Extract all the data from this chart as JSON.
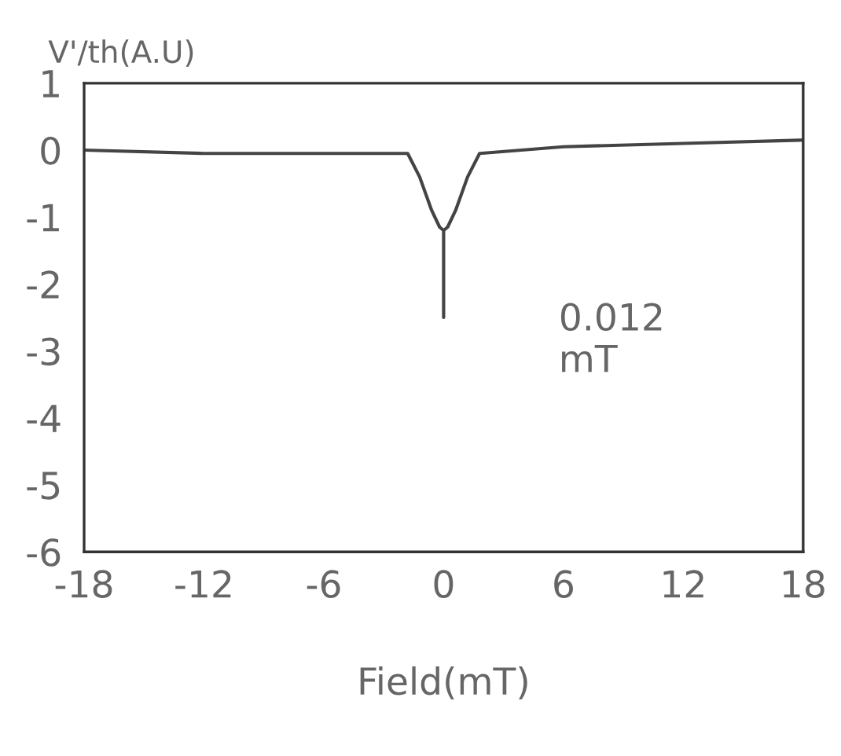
{
  "chart_data": {
    "type": "line",
    "xlabel": "Field(mT)",
    "ylabel": "V'/th(A.U)",
    "x": [
      -18,
      -12,
      -6,
      -1.8,
      -1.2,
      -0.6,
      -0.2,
      0,
      0,
      0,
      0.2,
      0.6,
      1.2,
      1.8,
      6,
      12,
      18
    ],
    "values": [
      0,
      -0.05,
      -0.05,
      -0.05,
      -0.4,
      -0.9,
      -1.15,
      -1.2,
      -2.5,
      -1.2,
      -1.15,
      -0.9,
      -0.4,
      -0.05,
      0.05,
      0.1,
      0.15
    ],
    "color": "#444444",
    "xlim": [
      -18,
      18
    ],
    "ylim": [
      -6,
      1
    ],
    "xticks": [
      -18,
      -12,
      -6,
      0,
      6,
      12,
      18
    ],
    "yticks": [
      -6,
      -5,
      -4,
      -3,
      -2,
      -1,
      0,
      1
    ],
    "annotations": [
      "0.012\nmT"
    ],
    "grid": false,
    "legend": false
  }
}
